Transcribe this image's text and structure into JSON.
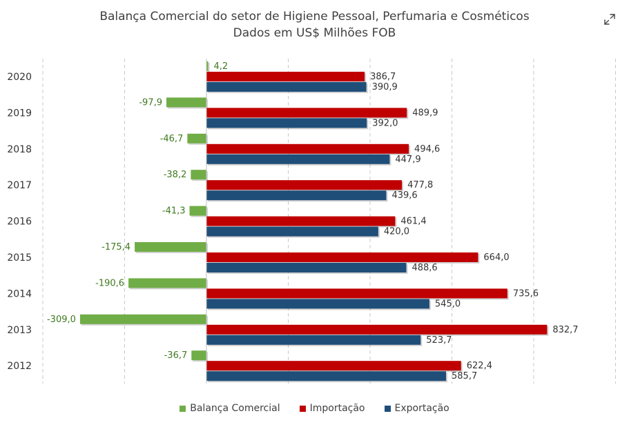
{
  "chart_data": {
    "type": "bar",
    "orientation": "horizontal",
    "title": "Balança Comercial do setor de Higiene Pessoal, Perfumaria e Cosméticos",
    "subtitle": "Dados em US$ Milhões FOB",
    "categories": [
      "2020",
      "2019",
      "2018",
      "2017",
      "2016",
      "2015",
      "2014",
      "2013",
      "2012"
    ],
    "series": [
      {
        "name": "Balança Comercial",
        "color": "#70ad47",
        "label_color": "#3e7a1e",
        "values": [
          4.2,
          -97.9,
          -46.7,
          -38.2,
          -41.3,
          -175.4,
          -190.6,
          -309.0,
          -36.7
        ],
        "labels": [
          "4,2",
          "-97,9",
          "-46,7",
          "-38,2",
          "-41,3",
          "-175,4",
          "-190,6",
          "-309,0",
          "-36,7"
        ]
      },
      {
        "name": "Importação",
        "color": "#c00000",
        "label_color": "#333333",
        "values": [
          386.7,
          489.9,
          494.6,
          477.8,
          461.4,
          664.0,
          735.6,
          832.7,
          622.4
        ],
        "labels": [
          "386,7",
          "489,9",
          "494,6",
          "477,8",
          "461,4",
          "664,0",
          "735,6",
          "832,7",
          "622,4"
        ]
      },
      {
        "name": "Exportação",
        "color": "#1f4e79",
        "label_color": "#333333",
        "values": [
          390.9,
          392.0,
          447.9,
          439.6,
          420.0,
          488.6,
          545.0,
          523.7,
          585.7
        ],
        "labels": [
          "390,9",
          "392,0",
          "447,9",
          "439,6",
          "420,0",
          "488,6",
          "545,0",
          "523,7",
          "585,7"
        ]
      }
    ],
    "xlim": [
      -400,
      1000
    ],
    "grid": "vertical dashed",
    "legend_position": "bottom"
  },
  "icons": {
    "expand": "expand-icon"
  }
}
